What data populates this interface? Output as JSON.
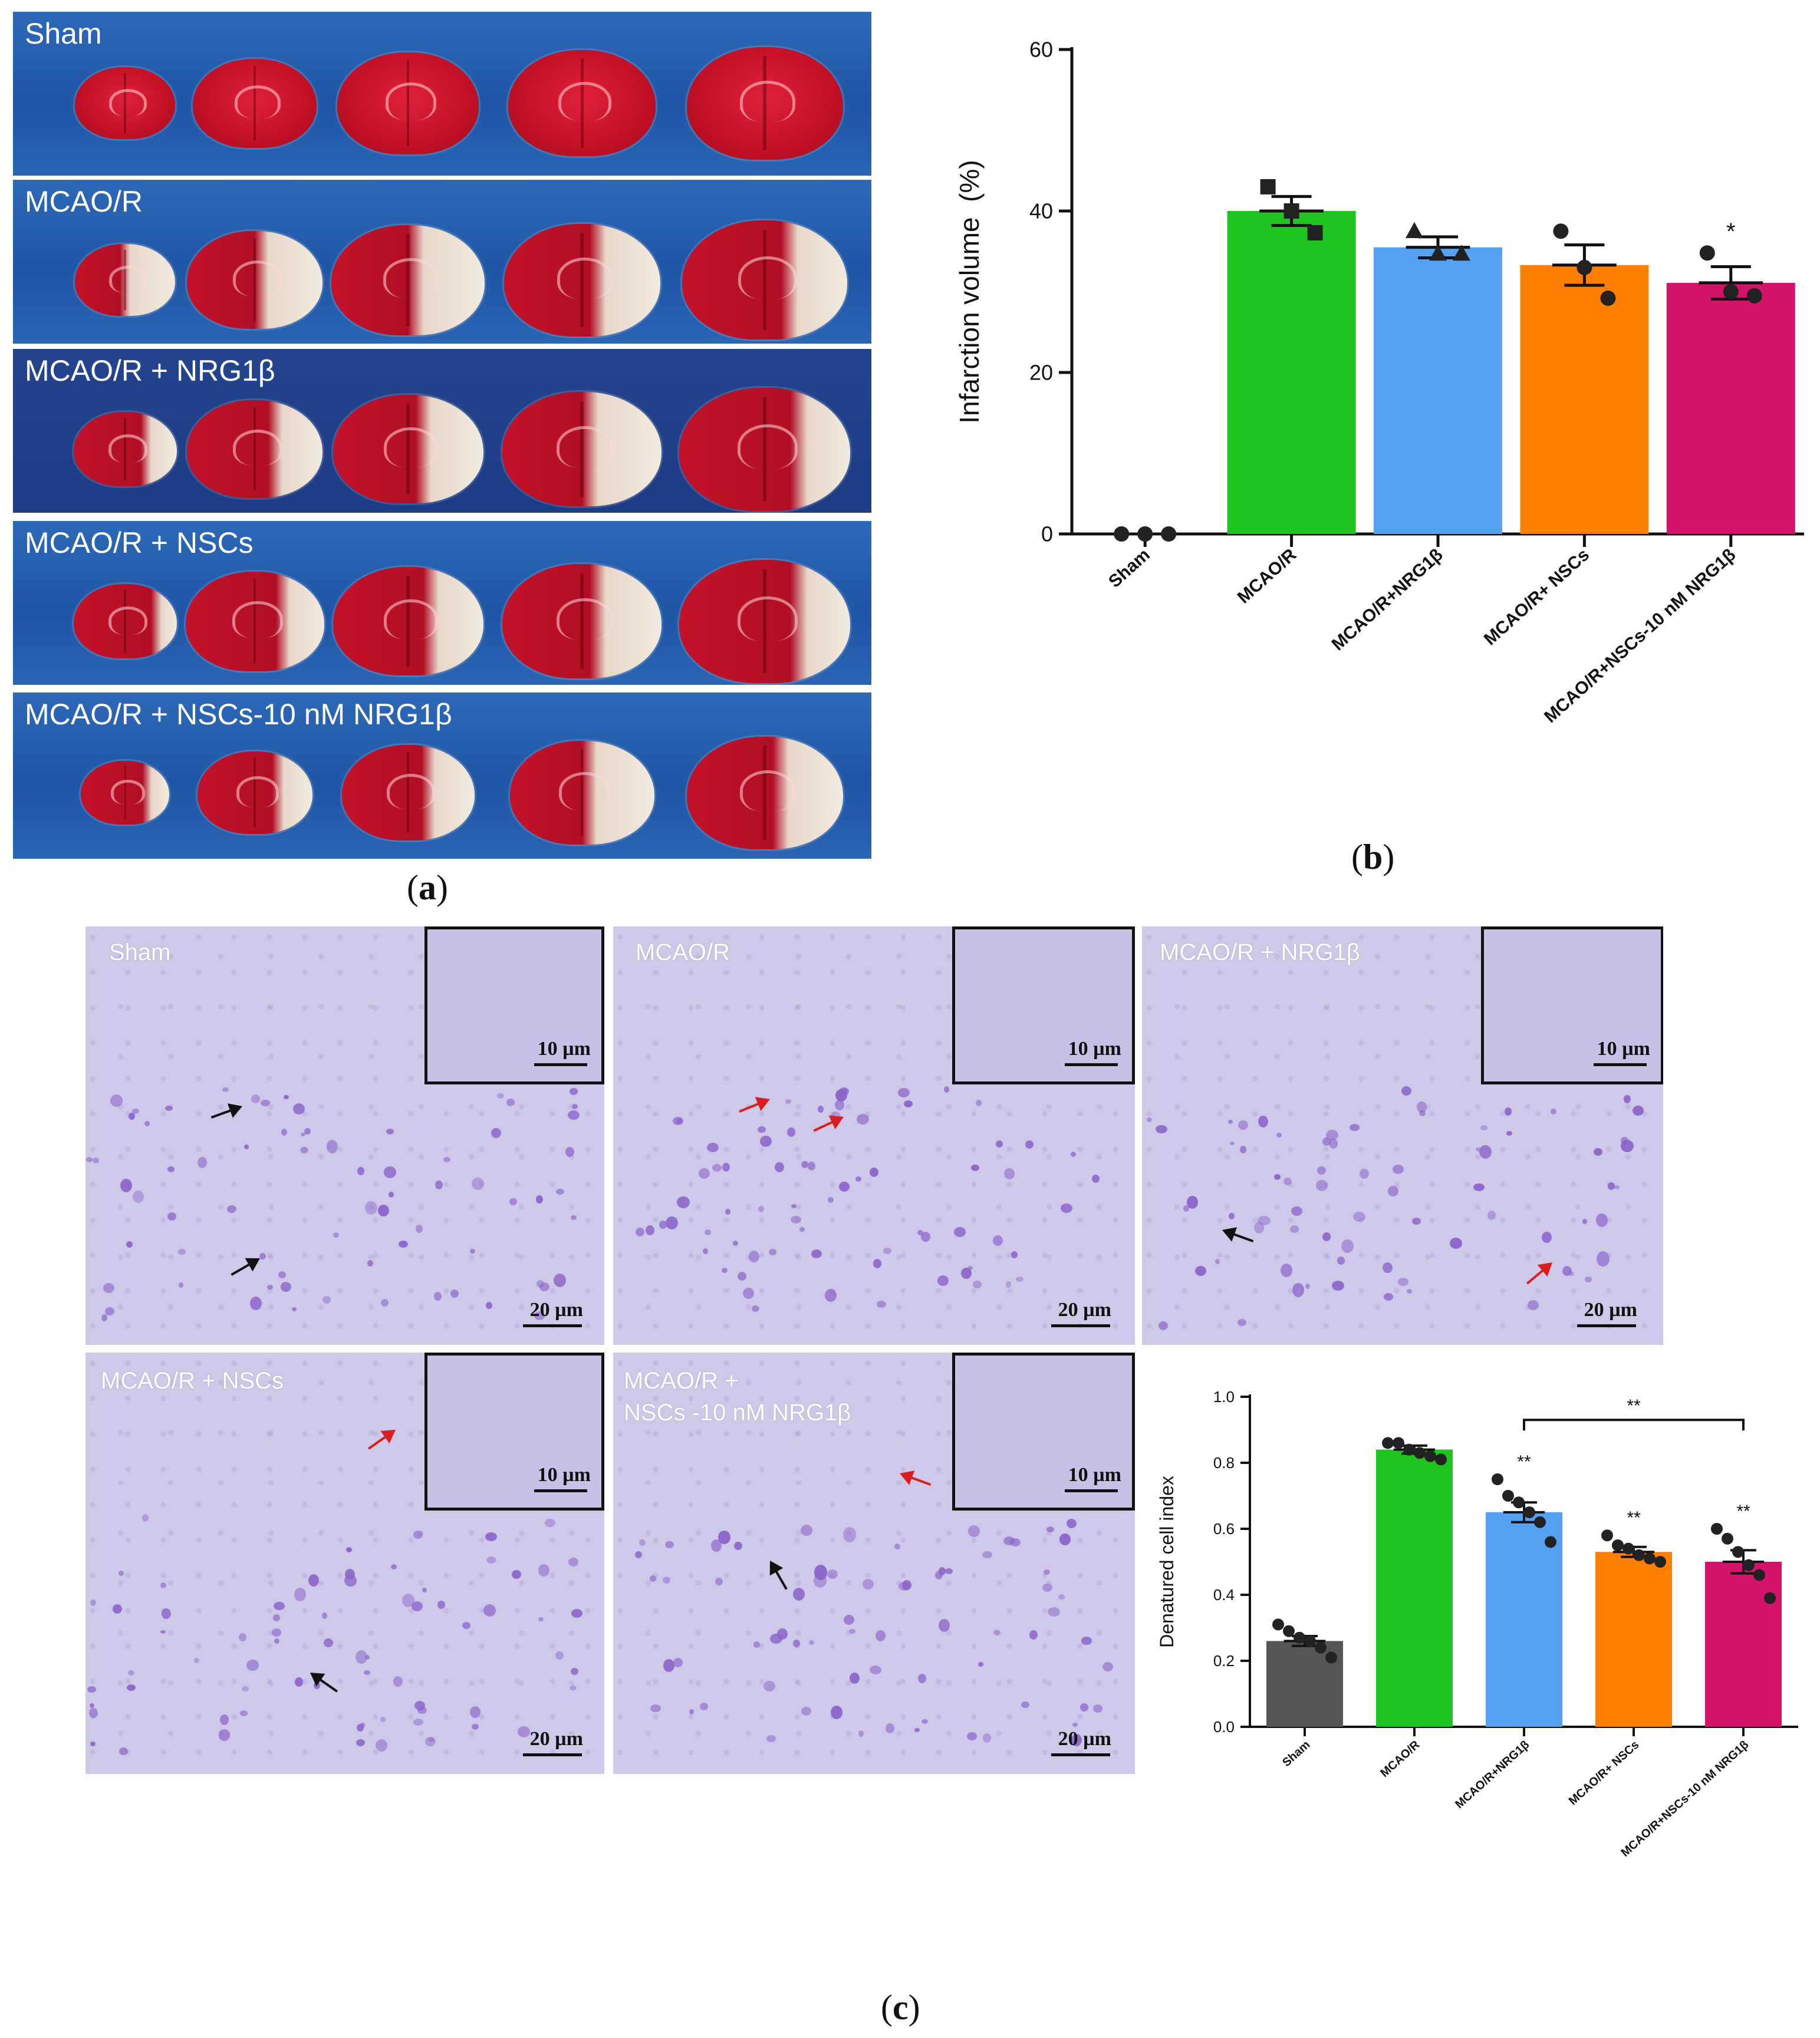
{
  "panels": {
    "a": {
      "open": "(",
      "letter": "a",
      "close": ")"
    },
    "b": {
      "open": "(",
      "letter": "b",
      "close": ")"
    },
    "c": {
      "open": "(",
      "letter": "c",
      "close": ")"
    }
  },
  "ttc_rows": [
    {
      "label": "Sham"
    },
    {
      "label": "MCAO/R"
    },
    {
      "label": "MCAO/R  + NRG1β"
    },
    {
      "label": "MCAO/R  + NSCs"
    },
    {
      "label": "MCAO/R  + NSCs-10 nM NRG1β"
    }
  ],
  "micrographs": [
    {
      "label": "Sham",
      "inset_scale": "10 µm",
      "scale": "20 µm"
    },
    {
      "label": "MCAO/R",
      "inset_scale": "10 µm",
      "scale": "20 µm"
    },
    {
      "label": "MCAO/R  + NRG1β",
      "inset_scale": "10 µm",
      "scale": "20 µm"
    },
    {
      "label": "MCAO/R + NSCs",
      "inset_scale": "10 µm",
      "scale": "20 µm"
    },
    {
      "label": "MCAO/R +",
      "label2": "NSCs -10 nM NRG1β",
      "inset_scale": "10 µm",
      "scale": "20 µm"
    }
  ],
  "colors": {
    "sham": "#555555",
    "mcao": "#1fc41f",
    "nrg": "#55a2f2",
    "nscs": "#ff8000",
    "combo": "#d3136a",
    "arrow_black": "#111111",
    "arrow_red": "#d81e1e"
  },
  "chart_data": [
    {
      "type": "bar",
      "title": "",
      "xlabel": "",
      "ylabel": "Infarction volume  (%)",
      "ylim": [
        0,
        60
      ],
      "yticks": [
        0,
        20,
        40,
        60
      ],
      "categories": [
        "Sham",
        "MCAO/R",
        "MCAO/R+NRG1β",
        "MCAO/R+ NSCs",
        "MCAO/R+NSCs-10 nM NRG1β"
      ],
      "values": [
        0,
        40,
        35.5,
        33.3,
        31.1
      ],
      "errors": [
        0,
        1.8,
        1.3,
        2.5,
        2.0
      ],
      "markers": [
        "circle",
        "square",
        "triangle",
        "circle",
        "circle"
      ],
      "points": [
        [
          0,
          0,
          0
        ],
        [
          43,
          40,
          37.3
        ],
        [
          37.5,
          34.7,
          34.7
        ],
        [
          37.5,
          33,
          29.2
        ],
        [
          34.8,
          30,
          29.5
        ]
      ],
      "annotations": [
        {
          "index": 4,
          "text": "*"
        }
      ],
      "grid": false
    },
    {
      "type": "bar",
      "title": "",
      "xlabel": "",
      "ylabel": "Denatured cell index",
      "ylim": [
        0,
        1.0
      ],
      "yticks": [
        0.0,
        0.2,
        0.4,
        0.6,
        0.8,
        1.0
      ],
      "categories": [
        "Sham",
        "MCAO/R",
        "MCAO/R+NRG1β",
        "MCAO/R+ NSCs",
        "MCAO/R+NSCs-10 nM NRG1β"
      ],
      "values": [
        0.26,
        0.84,
        0.65,
        0.53,
        0.5
      ],
      "errors": [
        0.015,
        0.012,
        0.03,
        0.015,
        0.035
      ],
      "points": [
        [
          0.31,
          0.29,
          0.27,
          0.26,
          0.24,
          0.21
        ],
        [
          0.86,
          0.86,
          0.84,
          0.83,
          0.82,
          0.81
        ],
        [
          0.75,
          0.7,
          0.68,
          0.65,
          0.62,
          0.56
        ],
        [
          0.58,
          0.55,
          0.54,
          0.52,
          0.51,
          0.5
        ],
        [
          0.6,
          0.57,
          0.53,
          0.49,
          0.46,
          0.39
        ]
      ],
      "annotations": [
        {
          "index": 2,
          "text": "**"
        },
        {
          "index": 3,
          "text": "**"
        },
        {
          "index": 4,
          "text": "**"
        },
        {
          "bracket": [
            2,
            4
          ],
          "text": "**"
        }
      ],
      "grid": false
    }
  ]
}
